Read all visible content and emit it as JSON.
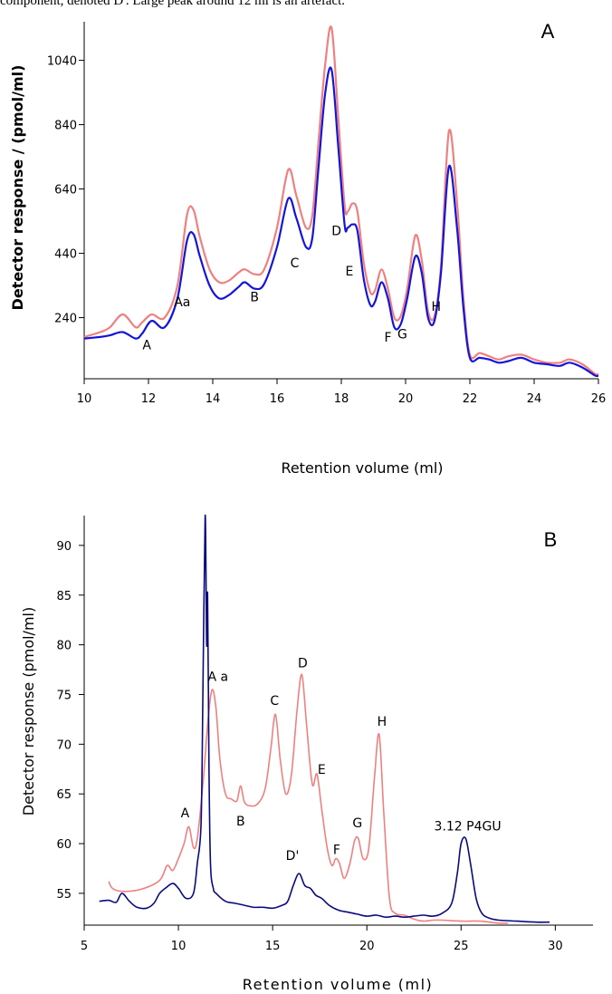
{
  "caption": "component, denoted D'. Large peak around 12 ml is an artefact.",
  "chart_data": [
    {
      "type": "line",
      "panel_label": "A",
      "xlabel": "Retention volume (ml)",
      "ylabel": "Detector response / (pmol/ml)",
      "xlim": [
        10,
        26
      ],
      "ylim": [
        50,
        1160
      ],
      "xticks": [
        10,
        12,
        14,
        16,
        18,
        20,
        22,
        24,
        26
      ],
      "yticks": [
        240,
        440,
        640,
        840,
        1040
      ],
      "grid": false,
      "legend": "none",
      "series": [
        {
          "color": "#f08080",
          "x": [
            10,
            10.5,
            10.8,
            11.2,
            11.6,
            11.8,
            12.1,
            12.5,
            12.9,
            13.2,
            13.4,
            13.6,
            13.9,
            14.2,
            14.5,
            14.8,
            15.0,
            15.3,
            15.6,
            16.0,
            16.35,
            16.6,
            16.9,
            17.1,
            17.3,
            17.5,
            17.7,
            17.9,
            18.1,
            18.2,
            18.35,
            18.5,
            18.7,
            18.9,
            19.05,
            19.25,
            19.45,
            19.65,
            19.85,
            20.05,
            20.3,
            20.5,
            20.7,
            20.9,
            21.1,
            21.35,
            21.6,
            21.8,
            22.0,
            22.3,
            22.6,
            22.9,
            23.2,
            23.6,
            24.0,
            24.4,
            24.8,
            25.1,
            25.5,
            25.9,
            26.0
          ],
          "y": [
            180,
            195,
            210,
            250,
            210,
            225,
            250,
            240,
            340,
            560,
            575,
            490,
            390,
            350,
            355,
            380,
            390,
            375,
            390,
            520,
            700,
            620,
            520,
            560,
            800,
            1030,
            1140,
            870,
            590,
            570,
            595,
            570,
            410,
            320,
            325,
            390,
            330,
            240,
            245,
            330,
            495,
            420,
            260,
            245,
            400,
            820,
            600,
            300,
            125,
            130,
            120,
            110,
            120,
            125,
            110,
            100,
            100,
            110,
            95,
            65,
            65
          ]
        },
        {
          "color": "#1414dc",
          "x": [
            10,
            10.5,
            10.8,
            11.2,
            11.6,
            11.8,
            12.1,
            12.5,
            12.9,
            13.2,
            13.4,
            13.6,
            13.9,
            14.2,
            14.5,
            14.8,
            15.0,
            15.3,
            15.6,
            16.0,
            16.35,
            16.6,
            16.9,
            17.1,
            17.3,
            17.5,
            17.7,
            17.9,
            18.1,
            18.2,
            18.35,
            18.5,
            18.7,
            18.9,
            19.05,
            19.25,
            19.45,
            19.65,
            19.85,
            20.05,
            20.3,
            20.5,
            20.7,
            20.9,
            21.1,
            21.35,
            21.6,
            21.8,
            22.0,
            22.3,
            22.6,
            22.9,
            23.2,
            23.6,
            24.0,
            24.4,
            24.8,
            25.1,
            25.5,
            25.9,
            26.0
          ],
          "y": [
            175,
            180,
            185,
            195,
            175,
            190,
            230,
            210,
            300,
            480,
            500,
            430,
            340,
            300,
            310,
            335,
            350,
            330,
            345,
            460,
            610,
            550,
            460,
            490,
            720,
            940,
            1010,
            780,
            530,
            520,
            530,
            510,
            360,
            280,
            290,
            350,
            300,
            210,
            220,
            300,
            430,
            380,
            240,
            230,
            380,
            710,
            520,
            270,
            115,
            115,
            110,
            100,
            105,
            115,
            100,
            95,
            90,
            100,
            85,
            60,
            60
          ]
        }
      ],
      "annotations": [
        {
          "text": "A",
          "x": 11.95,
          "y": 155
        },
        {
          "text": "Aa",
          "x": 13.05,
          "y": 290
        },
        {
          "text": "B",
          "x": 15.3,
          "y": 305
        },
        {
          "text": "C",
          "x": 16.55,
          "y": 410
        },
        {
          "text": "D",
          "x": 17.85,
          "y": 510
        },
        {
          "text": "E",
          "x": 18.25,
          "y": 385
        },
        {
          "text": "F",
          "x": 19.45,
          "y": 180
        },
        {
          "text": "G",
          "x": 19.9,
          "y": 190
        },
        {
          "text": "H",
          "x": 20.95,
          "y": 275
        }
      ]
    },
    {
      "type": "line",
      "panel_label": "B",
      "xlabel": "Retention volume (ml)",
      "ylabel": "Detector response (pmol/ml)",
      "xlim": [
        5,
        32
      ],
      "ylim": [
        51.8,
        93
      ],
      "xticks": [
        5,
        10,
        15,
        20,
        25,
        30
      ],
      "yticks": [
        55,
        60,
        65,
        70,
        75,
        80,
        85,
        90
      ],
      "grid": false,
      "legend": "none",
      "series": [
        {
          "color": "#f08080",
          "x": [
            6.3,
            6.5,
            7.0,
            8.0,
            9.0,
            9.4,
            9.7,
            10.0,
            10.3,
            10.55,
            10.8,
            11.0,
            11.3,
            11.6,
            11.8,
            12.0,
            12.2,
            12.5,
            12.8,
            13.1,
            13.3,
            13.5,
            13.8,
            14.2,
            14.6,
            14.9,
            15.15,
            15.4,
            15.7,
            16.0,
            16.3,
            16.55,
            16.8,
            17.1,
            17.35,
            17.6,
            17.9,
            18.15,
            18.35,
            18.55,
            18.8,
            19.1,
            19.35,
            19.55,
            19.8,
            20.1,
            20.4,
            20.65,
            20.9,
            21.2,
            21.5,
            22.0,
            22.5,
            23.0,
            23.5,
            24.0,
            25.0,
            26.0,
            27.0,
            27.5
          ],
          "y": [
            56.2,
            55.5,
            55.2,
            55.4,
            56.3,
            57.8,
            57.3,
            58.5,
            60.0,
            61.7,
            59.6,
            60.5,
            66.0,
            73.0,
            75.5,
            73.5,
            68.5,
            65.0,
            64.5,
            64.3,
            65.8,
            64.2,
            63.8,
            64.0,
            65.5,
            69.5,
            73.0,
            68.5,
            65.0,
            67.0,
            73.5,
            77.0,
            72.0,
            66.0,
            67.0,
            63.5,
            59.5,
            57.8,
            58.5,
            58.0,
            56.5,
            58.0,
            60.3,
            60.5,
            58.5,
            59.5,
            66.5,
            71.0,
            63.0,
            54.5,
            53.0,
            52.8,
            52.4,
            52.2,
            52.3,
            52.3,
            52.2,
            52.2,
            52.0,
            52.0
          ]
        },
        {
          "color": "#0a0a80",
          "x": [
            5.8,
            6.3,
            6.7,
            7.0,
            7.4,
            7.8,
            8.3,
            8.7,
            9.0,
            9.3,
            9.7,
            10.0,
            10.4,
            10.8,
            11.0,
            11.2,
            11.3,
            11.42,
            11.5,
            11.55,
            11.62,
            11.7,
            11.85,
            12.0,
            12.5,
            13.0,
            13.5,
            14.0,
            14.5,
            15.0,
            15.5,
            15.8,
            16.1,
            16.4,
            16.7,
            17.0,
            17.3,
            17.6,
            18.0,
            18.5,
            19.0,
            19.5,
            20.0,
            20.5,
            21.0,
            21.5,
            22.0,
            22.5,
            23.0,
            23.5,
            24.0,
            24.5,
            24.8,
            25.0,
            25.25,
            25.5,
            25.8,
            26.1,
            26.5,
            27.0,
            28.0,
            29.0,
            29.7
          ],
          "y": [
            54.2,
            54.3,
            54.1,
            55.0,
            54.2,
            53.6,
            53.5,
            54.0,
            55.0,
            55.5,
            56.0,
            55.5,
            54.5,
            55.0,
            58.0,
            62.0,
            75.0,
            93.0,
            80.0,
            85.0,
            68.0,
            58.0,
            55.5,
            55.0,
            54.2,
            54.0,
            53.8,
            53.6,
            53.6,
            53.5,
            53.8,
            54.2,
            55.8,
            57.0,
            55.8,
            55.5,
            54.8,
            54.5,
            53.8,
            53.3,
            53.1,
            52.9,
            52.7,
            52.8,
            52.6,
            52.7,
            52.6,
            52.7,
            52.8,
            52.7,
            53.0,
            54.0,
            57.0,
            60.0,
            60.5,
            58.0,
            54.5,
            53.0,
            52.5,
            52.3,
            52.2,
            52.1,
            52.1
          ]
        }
      ],
      "annotations": [
        {
          "text": "A",
          "x": 10.35,
          "y": 63.1
        },
        {
          "text": "A a",
          "x": 12.1,
          "y": 76.8
        },
        {
          "text": "B",
          "x": 13.3,
          "y": 62.3
        },
        {
          "text": "C",
          "x": 15.1,
          "y": 74.4
        },
        {
          "text": "D",
          "x": 16.6,
          "y": 78.2
        },
        {
          "text": "E",
          "x": 17.6,
          "y": 67.5
        },
        {
          "text": "F",
          "x": 18.4,
          "y": 59.4
        },
        {
          "text": "G",
          "x": 19.5,
          "y": 62.1
        },
        {
          "text": "H",
          "x": 20.8,
          "y": 72.3
        },
        {
          "text": "D'",
          "x": 16.05,
          "y": 58.8
        },
        {
          "text": "3.12 P4GU",
          "x": 25.35,
          "y": 61.8
        }
      ]
    }
  ]
}
